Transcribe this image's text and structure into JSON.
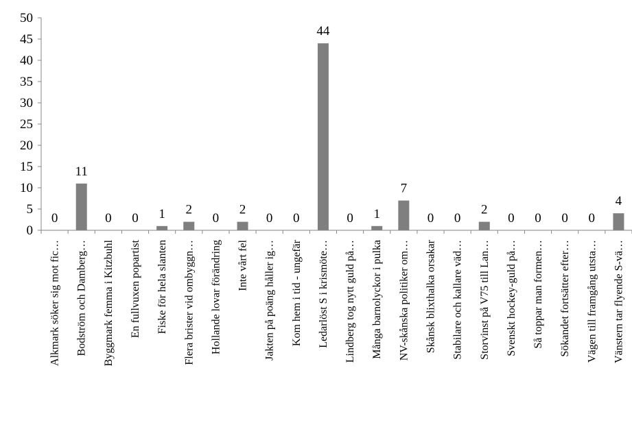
{
  "chart_data": {
    "type": "bar",
    "title": "",
    "xlabel": "",
    "ylabel": "",
    "ylim": [
      0,
      50
    ],
    "yticks": [
      0,
      5,
      10,
      15,
      20,
      25,
      30,
      35,
      40,
      45,
      50
    ],
    "grid": false,
    "legend": "none",
    "bar_color": "#7f7f7f",
    "categories": [
      "Alkmark söker sig mot fic…",
      "Bodström och Damberg…",
      "Byggmark femma i Kitzbuhl",
      "En fullvuxen popartist",
      "Fiske för hela slanten",
      "Flera brister vid ombyggn…",
      "Hollande lovar förändring",
      "Inte vårt fel",
      "Jakten på poäng håller ig…",
      "Kom hem i tid - ungefär",
      "Ledarlöst S i krismöte…",
      "Lindberg tog nytt guld på…",
      "Många barnolyckor i pulka",
      "NV-skånska politiker om…",
      "Skånsk blixthalka orsakar",
      "Stabilare och kallare väd…",
      "Storvinst på V75 till Lan…",
      "Svenskt hockey-guld på…",
      "Så toppar man formen…",
      "Sökandet fortsätter efter…",
      "Vägen till framgång utsta…",
      "Vänstern tar flyende S-vä…"
    ],
    "values": [
      0,
      11,
      0,
      0,
      1,
      2,
      0,
      2,
      0,
      0,
      44,
      0,
      1,
      7,
      0,
      0,
      2,
      0,
      0,
      0,
      0,
      4
    ]
  }
}
